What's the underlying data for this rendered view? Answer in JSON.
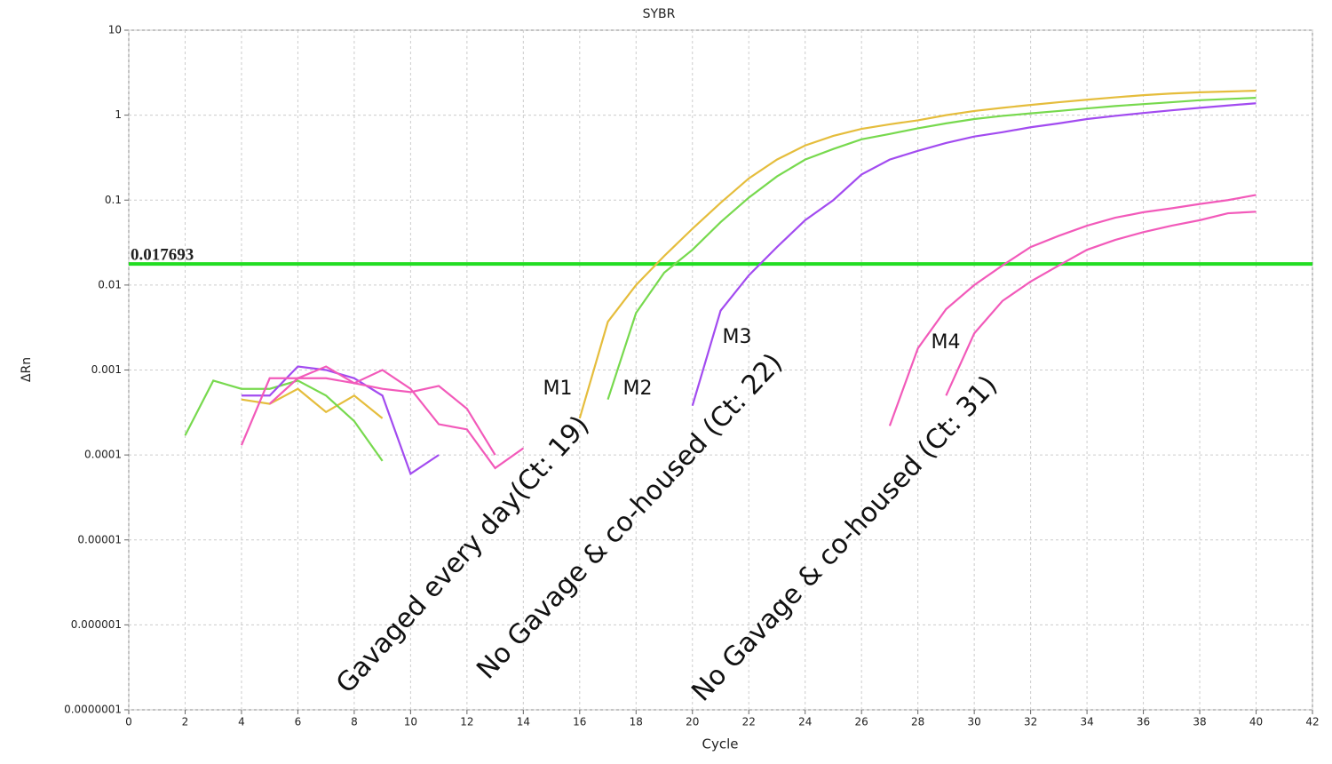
{
  "chart_data": {
    "type": "line",
    "title": "SYBR",
    "x_label": "Cycle",
    "y_label": "ΔRn",
    "log_y": true,
    "grid": true,
    "xlim": [
      0,
      42
    ],
    "xticks": [
      0,
      2,
      4,
      6,
      8,
      10,
      12,
      14,
      16,
      18,
      20,
      22,
      24,
      26,
      28,
      30,
      32,
      34,
      36,
      38,
      40,
      42
    ],
    "ylim": [
      1e-07,
      10
    ],
    "yticks": [
      {
        "value": 1e-07,
        "label": "0.0000001"
      },
      1e-06,
      1e-05,
      0.0001,
      0.001,
      0.01,
      0.1,
      1,
      10
    ],
    "threshold": {
      "value": 0.017693,
      "color": "#22dd22",
      "label_color": "#ff0000"
    },
    "x": [
      2,
      3,
      4,
      5,
      6,
      7,
      8,
      9,
      10,
      11,
      12,
      13,
      14,
      15,
      16,
      17,
      18,
      19,
      20,
      21,
      22,
      23,
      24,
      25,
      26,
      27,
      28,
      29,
      30,
      31,
      32,
      33,
      34,
      35,
      36,
      37,
      38,
      39,
      40
    ],
    "series": [
      {
        "name": "M1",
        "color": "#e5bd3c",
        "values": [
          null,
          null,
          0.00045,
          0.0004,
          0.0006,
          0.00032,
          0.0005,
          0.00027,
          null,
          null,
          null,
          null,
          null,
          null,
          0.00027,
          0.0037,
          0.01,
          0.022,
          0.046,
          0.093,
          0.18,
          0.3,
          0.44,
          0.57,
          0.69,
          0.78,
          0.87,
          1.0,
          1.12,
          1.22,
          1.32,
          1.42,
          1.52,
          1.62,
          1.72,
          1.8,
          1.86,
          1.9,
          1.94
        ]
      },
      {
        "name": "M2",
        "color": "#77d94e",
        "values": [
          0.00017,
          0.00075,
          0.0006,
          0.0006,
          0.00075,
          0.0005,
          0.00025,
          8.5e-05,
          null,
          null,
          null,
          null,
          null,
          null,
          null,
          0.00045,
          0.0047,
          0.014,
          0.026,
          0.055,
          0.107,
          0.19,
          0.3,
          0.4,
          0.52,
          0.6,
          0.7,
          0.8,
          0.9,
          0.98,
          1.05,
          1.12,
          1.2,
          1.28,
          1.35,
          1.42,
          1.5,
          1.55,
          1.6
        ]
      },
      {
        "name": "M3",
        "color": "#a24bf0",
        "values": [
          null,
          null,
          0.0005,
          0.0005,
          0.0011,
          0.001,
          0.0008,
          0.0005,
          6e-05,
          0.0001,
          null,
          null,
          null,
          null,
          null,
          null,
          null,
          null,
          0.00038,
          0.005,
          0.013,
          0.028,
          0.058,
          0.1,
          0.2,
          0.3,
          0.38,
          0.47,
          0.56,
          0.63,
          0.72,
          0.8,
          0.9,
          0.98,
          1.06,
          1.14,
          1.22,
          1.3,
          1.38
        ]
      },
      {
        "name": "M4",
        "color": "#f25aba",
        "values": [
          null,
          null,
          0.00013,
          0.0008,
          0.0008,
          0.0011,
          0.0007,
          0.001,
          0.0006,
          0.00023,
          0.0002,
          7e-05,
          0.00012,
          null,
          null,
          null,
          null,
          null,
          null,
          null,
          null,
          null,
          null,
          null,
          null,
          0.00022,
          0.0018,
          0.0052,
          0.01,
          0.017,
          0.028,
          0.038,
          0.05,
          0.062,
          0.072,
          0.08,
          0.09,
          0.1,
          0.115
        ]
      },
      {
        "color": "#f25aba",
        "values": [
          null,
          null,
          null,
          0.0004,
          0.0008,
          0.0008,
          0.0007,
          0.0006,
          0.00055,
          0.00065,
          0.00035,
          0.0001,
          null,
          null,
          null,
          null,
          null,
          null,
          null,
          null,
          null,
          null,
          null,
          null,
          null,
          null,
          null,
          0.0005,
          0.0027,
          0.0065,
          0.011,
          0.017,
          0.026,
          0.034,
          0.042,
          0.05,
          0.058,
          0.07,
          0.073
        ]
      }
    ],
    "annotations": [
      "Gavaged every day(Ct: 19)",
      "No Gavage & co-housed (Ct: 22)",
      "No Gavage & co-housed (Ct: 31)"
    ]
  }
}
